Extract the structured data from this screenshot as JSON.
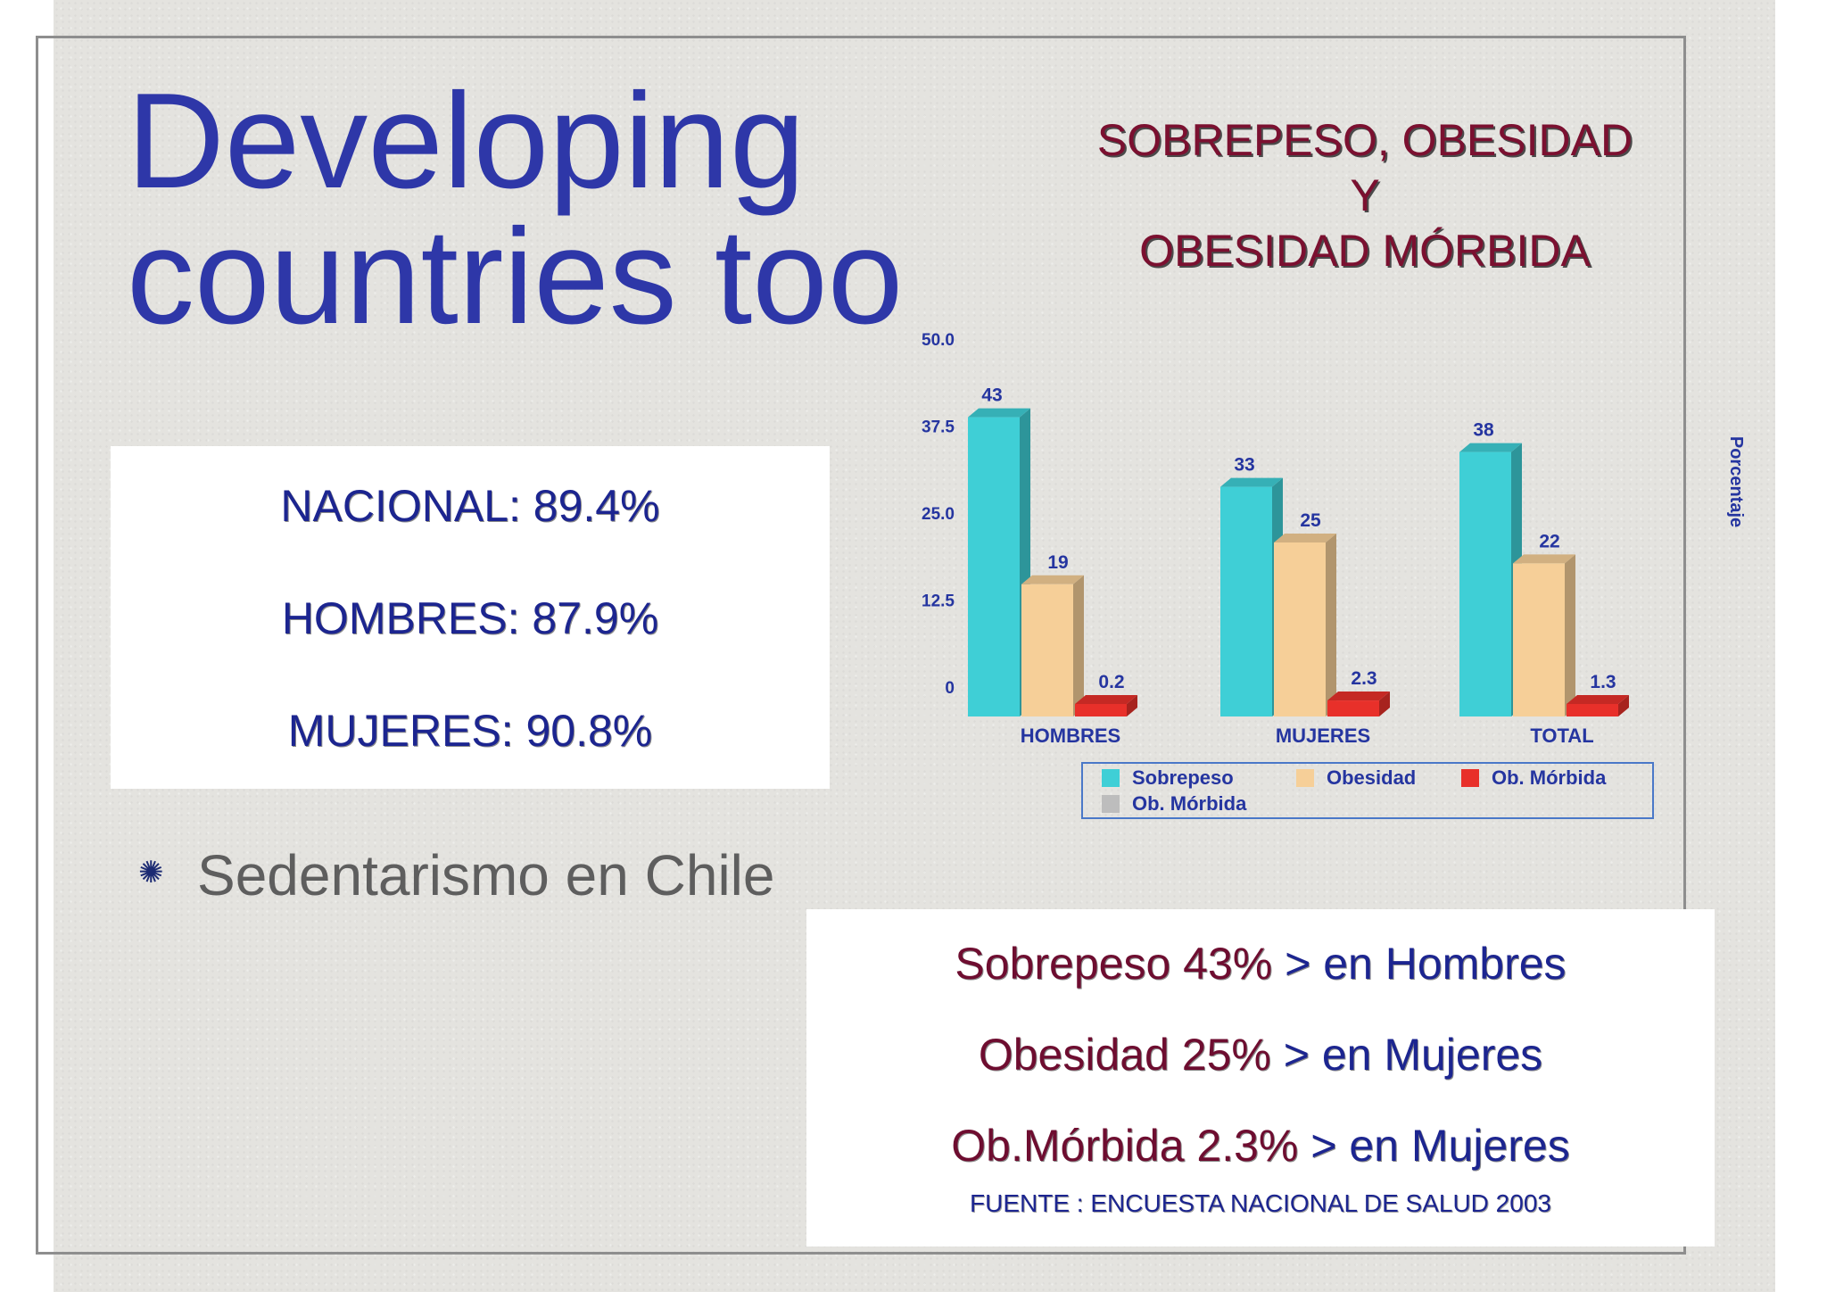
{
  "slide": {
    "title_line1": "Developing",
    "title_line2": "countries too",
    "chart_title_line1": "SOBREPESO, OBESIDAD",
    "chart_title_line2": "Y",
    "chart_title_line3": "OBESIDAD MÓRBIDA",
    "stats": [
      "NACIONAL: 89.4%",
      "HOMBRES: 87.9%",
      "MUJERES: 90.8%"
    ],
    "bullet_text": "Sedentarismo en Chile",
    "notes": [
      {
        "a": "Sobrepeso 43%",
        "b": " > en Hombres"
      },
      {
        "a": "Obesidad 25%",
        "b": " > en Mujeres"
      },
      {
        "a": "Ob.Mórbida  2.3%",
        "b": " > en Mujeres"
      }
    ],
    "source": "FUENTE : ENCUESTA NACIONAL DE SALUD 2003"
  },
  "chart_data": {
    "type": "bar",
    "categories": [
      "HOMBRES",
      "MUJERES",
      "TOTAL"
    ],
    "series": [
      {
        "name": "Sobrepeso",
        "values": [
          43,
          33,
          38
        ],
        "labels": [
          "43",
          "33",
          "38"
        ]
      },
      {
        "name": "Obesidad",
        "values": [
          19,
          25,
          22
        ],
        "labels": [
          "19",
          "25",
          "22"
        ]
      },
      {
        "name": "Ob. Mórbida",
        "values": [
          0.2,
          2.3,
          1.3
        ],
        "labels": [
          "0.2",
          "2.3",
          "1.3"
        ]
      }
    ],
    "legend": [
      "Sobrepeso",
      "Obesidad",
      "Ob. Mórbida",
      "Ob. Mórbida"
    ],
    "ylim": [
      0,
      50
    ],
    "yticks": [
      "0",
      "12.5",
      "25.0",
      "37.5",
      "50.0"
    ],
    "ylabel": "Porcentaje",
    "ylabel_position": "right",
    "legend_position": "bottom",
    "colors": {
      "Sobrepeso": "#3fcfd6",
      "Obesidad": "#f6cf98",
      "Ob. Mórbida": "#e8302a",
      "legend_extra": "#bdbdbd"
    }
  }
}
